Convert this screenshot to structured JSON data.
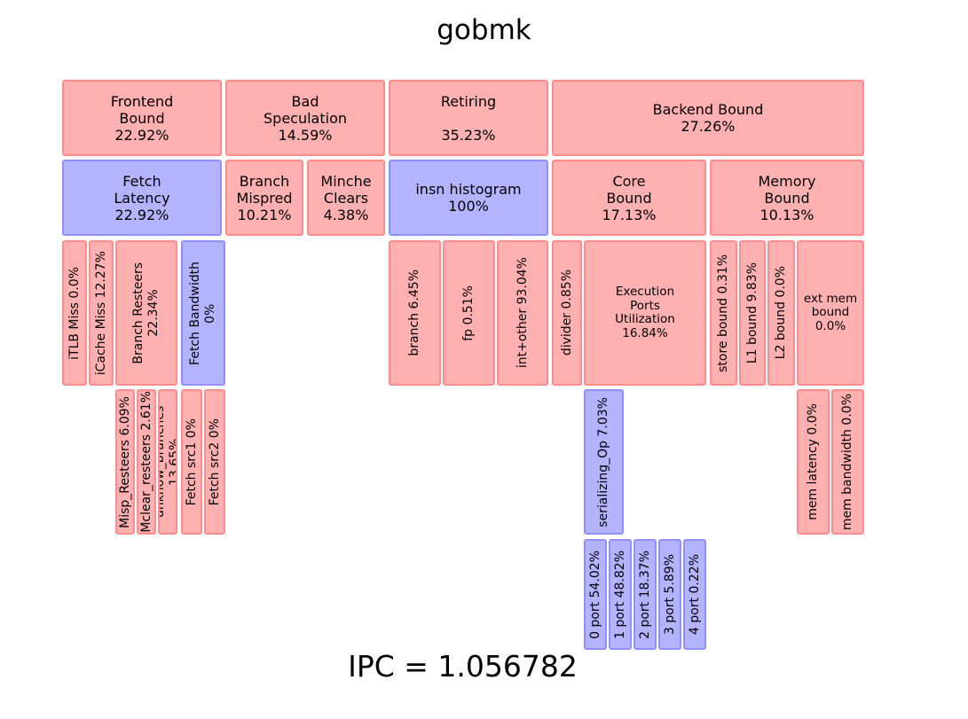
{
  "title": "gobmk",
  "ipc": "IPC = 1.056782",
  "colors": {
    "red_fill": "#ffb1b1",
    "red_border": "#ff8c8c",
    "blue_fill": "#b3b3ff",
    "blue_border": "#8f8fff"
  },
  "level1": {
    "frontend": "Frontend\nBound\n22.92%",
    "bad_spec": "Bad\nSpeculation\n14.59%",
    "retiring": "Retiring\n\n35.23%",
    "backend": "Backend Bound\n27.26%"
  },
  "level2": {
    "fetch_latency": "Fetch\nLatency\n22.92%",
    "branch_mispred": "Branch\nMispred\n10.21%",
    "minche_clears": "Minche\nClears\n4.38%",
    "insn_histogram": "insn histogram\n100%",
    "core_bound": "Core\nBound\n17.13%",
    "memory_bound": "Memory\nBound\n10.13%"
  },
  "level3": {
    "itlb_miss": "iTLB Miss 0.0%",
    "icache_miss": "iCache Miss 12.27%",
    "branch_resteers": "Branch Resteers\n22.34%",
    "fetch_bandwidth": "Fetch Bandwidth\n0%",
    "branch": "branch 6.45%",
    "fp": "fp 0.51%",
    "int_other": "int+other 93.04%",
    "divider": "divider 0.85%",
    "execution_ports": "Execution\nPorts\nUtilization\n16.84%",
    "store_bound": "store bound 0.31%",
    "l1_bound": "L1 bound 9.83%",
    "l2_bound": "L2 bound 0.0%",
    "ext_mem_bound": "ext mem\nbound\n0.0%"
  },
  "level4": {
    "misp_resteers": "Misp_Resteers 6.09%",
    "mclear_resteers": "Mclear_resteers 2.61%",
    "unknow_branches": "unknow_branches 13.65%",
    "fetch_src1": "Fetch src1 0%",
    "fetch_src2": "Fetch src2 0%",
    "serializing_op": "serializing_Op 7.03%",
    "mem_latency": "mem latency 0.0%",
    "mem_bandwidth": "mem bandwidth 0.0%"
  },
  "level5": {
    "port0": "0 port 54.02%",
    "port1": "1 port 48.82%",
    "port2": "2 port 18.37%",
    "port3": "3 port 5.89%",
    "port4": "4 port 0.22%"
  }
}
